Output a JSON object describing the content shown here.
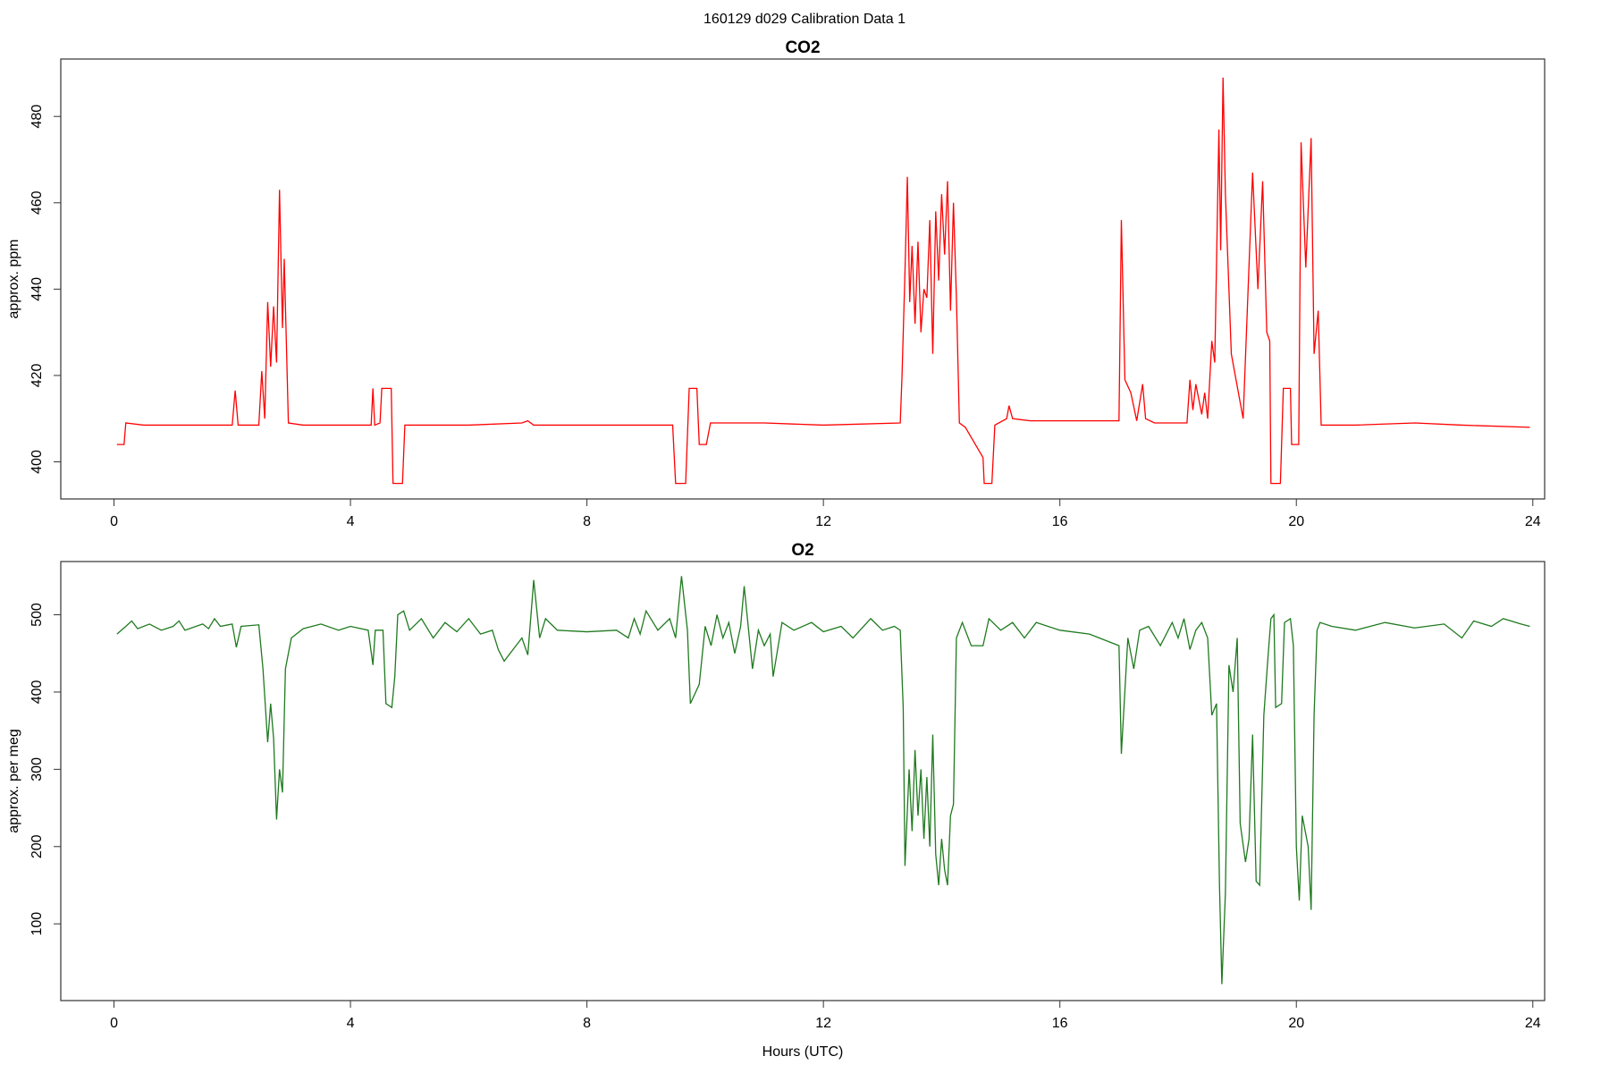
{
  "title": "160129   d029   Calibration Data 1",
  "chart_data": [
    {
      "type": "line",
      "title": "CO2",
      "y_label": "approx. ppm",
      "color": "#ff0000",
      "xlim": [
        -0.9,
        24.2
      ],
      "xticks": [
        0,
        4,
        8,
        12,
        16,
        20,
        24
      ],
      "ylim": [
        391.4,
        493.3
      ],
      "yticks": [
        400,
        420,
        440,
        460,
        480
      ],
      "x": [
        0.05,
        0.17,
        0.2,
        0.5,
        1,
        2,
        2.05,
        2.1,
        2.45,
        2.5,
        2.55,
        2.6,
        2.65,
        2.7,
        2.75,
        2.8,
        2.85,
        2.88,
        2.95,
        3.2,
        4,
        4.35,
        4.38,
        4.41,
        4.5,
        4.53,
        4.69,
        4.72,
        4.88,
        4.92,
        6,
        6.9,
        7,
        7.1,
        9,
        9.45,
        9.5,
        9.67,
        9.73,
        9.86,
        9.9,
        10.02,
        10.09,
        11,
        12,
        13.3,
        13.33,
        13.38,
        13.42,
        13.46,
        13.5,
        13.55,
        13.6,
        13.65,
        13.7,
        13.75,
        13.8,
        13.85,
        13.9,
        13.95,
        14,
        14.05,
        14.1,
        14.15,
        14.2,
        14.25,
        14.3,
        14.4,
        14.7,
        14.72,
        14.85,
        14.9,
        15.1,
        15.14,
        15.2,
        15.5,
        17,
        17.04,
        17.1,
        17.2,
        17.3,
        17.4,
        17.45,
        17.6,
        18.15,
        18.2,
        18.25,
        18.3,
        18.4,
        18.45,
        18.5,
        18.57,
        18.62,
        18.69,
        18.72,
        18.76,
        18.8,
        18.9,
        19.1,
        19.17,
        19.26,
        19.35,
        19.43,
        19.5,
        19.55,
        19.57,
        19.73,
        19.78,
        19.9,
        19.92,
        20.04,
        20.08,
        20.16,
        20.25,
        20.3,
        20.37,
        20.42,
        21,
        22,
        22.8,
        23.95
      ],
      "values": [
        404,
        404,
        409,
        408.5,
        408.5,
        408.5,
        416.5,
        408.5,
        408.5,
        421,
        410,
        437,
        422,
        436,
        423,
        463,
        431,
        447,
        409,
        408.5,
        408.5,
        408.5,
        417,
        408.5,
        409,
        417,
        417,
        395,
        395,
        408.5,
        408.5,
        409,
        409.5,
        408.5,
        408.5,
        408.5,
        395,
        395,
        417,
        417,
        404,
        404,
        409,
        409,
        408.5,
        409,
        420,
        444,
        466,
        437,
        450,
        432,
        451,
        430,
        440,
        438,
        456,
        425,
        458,
        442,
        462,
        448,
        465,
        435,
        460,
        438,
        409,
        408,
        401,
        395,
        395,
        408.5,
        410,
        413,
        410,
        409.5,
        409.5,
        456,
        419,
        416,
        409.5,
        418,
        410,
        409,
        409,
        419,
        412,
        418,
        411,
        416,
        410,
        428,
        423,
        477,
        449,
        489,
        462,
        425,
        410,
        435,
        467,
        440,
        465,
        430,
        428,
        395,
        395,
        417,
        417,
        404,
        404,
        474,
        445,
        475,
        425,
        435,
        408.5,
        408.5,
        409,
        408.5,
        408
      ]
    },
    {
      "type": "line",
      "title": "O2",
      "y_label": "approx. per meg",
      "x_label": "Hours (UTC)",
      "color": "#1f7a1f",
      "xlim": [
        -0.9,
        24.2
      ],
      "xticks": [
        0,
        4,
        8,
        12,
        16,
        20,
        24
      ],
      "ylim": [
        0.7,
        568.9
      ],
      "yticks": [
        100,
        200,
        300,
        400,
        500
      ],
      "x": [
        0.05,
        0.2,
        0.3,
        0.4,
        0.6,
        0.8,
        1,
        1.1,
        1.2,
        1.5,
        1.6,
        1.7,
        1.8,
        2.0,
        2.07,
        2.15,
        2.45,
        2.52,
        2.6,
        2.65,
        2.7,
        2.75,
        2.8,
        2.85,
        2.9,
        3.0,
        3.2,
        3.5,
        3.8,
        4.0,
        4.3,
        4.38,
        4.42,
        4.55,
        4.6,
        4.7,
        4.75,
        4.8,
        4.9,
        5.0,
        5.2,
        5.4,
        5.6,
        5.8,
        6.0,
        6.2,
        6.4,
        6.5,
        6.6,
        6.8,
        6.9,
        7.0,
        7.1,
        7.2,
        7.3,
        7.5,
        8,
        8.5,
        8.7,
        8.8,
        8.9,
        9.0,
        9.2,
        9.4,
        9.5,
        9.6,
        9.7,
        9.75,
        9.9,
        10,
        10.1,
        10.2,
        10.3,
        10.4,
        10.5,
        10.6,
        10.66,
        10.8,
        10.9,
        11.0,
        11.1,
        11.15,
        11.3,
        11.5,
        11.8,
        12.0,
        12.3,
        12.5,
        12.8,
        13.0,
        13.2,
        13.3,
        13.35,
        13.38,
        13.45,
        13.5,
        13.55,
        13.6,
        13.65,
        13.7,
        13.75,
        13.8,
        13.85,
        13.9,
        13.95,
        14.0,
        14.05,
        14.1,
        14.15,
        14.2,
        14.25,
        14.35,
        14.5,
        14.7,
        14.8,
        15.0,
        15.2,
        15.4,
        15.6,
        16,
        16.5,
        17.0,
        17.04,
        17.15,
        17.25,
        17.35,
        17.5,
        17.7,
        17.9,
        18.0,
        18.1,
        18.2,
        18.3,
        18.4,
        18.5,
        18.57,
        18.65,
        18.7,
        18.74,
        18.8,
        18.86,
        18.93,
        19.0,
        19.05,
        19.14,
        19.2,
        19.26,
        19.32,
        19.38,
        19.45,
        19.52,
        19.57,
        19.62,
        19.65,
        19.75,
        19.8,
        19.9,
        19.95,
        20.0,
        20.05,
        20.1,
        20.2,
        20.25,
        20.3,
        20.35,
        20.4,
        20.6,
        21,
        21.5,
        22,
        22.5,
        22.8,
        23,
        23.3,
        23.5,
        23.8,
        23.95
      ],
      "values": [
        475,
        485,
        492,
        482,
        488,
        480,
        485,
        492,
        480,
        488,
        482,
        495,
        485,
        488,
        458,
        485,
        487,
        430,
        335,
        385,
        340,
        235,
        300,
        270,
        430,
        470,
        482,
        488,
        480,
        485,
        480,
        435,
        480,
        480,
        385,
        380,
        420,
        500,
        505,
        480,
        495,
        470,
        490,
        478,
        495,
        475,
        480,
        455,
        440,
        460,
        470,
        448,
        545,
        470,
        495,
        480,
        478,
        480,
        470,
        495,
        475,
        505,
        480,
        495,
        470,
        550,
        480,
        385,
        410,
        485,
        460,
        500,
        470,
        490,
        450,
        485,
        537,
        430,
        480,
        460,
        475,
        420,
        490,
        480,
        490,
        478,
        485,
        470,
        495,
        480,
        485,
        480,
        380,
        175,
        300,
        220,
        325,
        240,
        300,
        210,
        290,
        200,
        345,
        190,
        150,
        210,
        170,
        150,
        240,
        255,
        470,
        490,
        460,
        460,
        495,
        480,
        490,
        470,
        490,
        480,
        475,
        460,
        320,
        470,
        430,
        480,
        485,
        460,
        490,
        470,
        495,
        455,
        480,
        490,
        470,
        370,
        385,
        150,
        22,
        140,
        435,
        400,
        470,
        230,
        180,
        210,
        345,
        155,
        150,
        370,
        445,
        495,
        500,
        380,
        385,
        490,
        495,
        460,
        200,
        130,
        240,
        200,
        118,
        370,
        480,
        490,
        485,
        480,
        490,
        483,
        488,
        470,
        492,
        485,
        495,
        488,
        485
      ]
    }
  ]
}
